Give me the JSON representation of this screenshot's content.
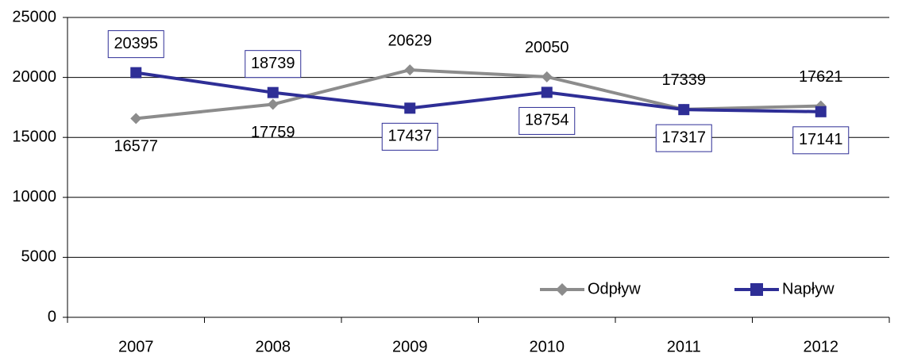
{
  "chart_data": {
    "type": "line",
    "categories": [
      "2007",
      "2008",
      "2009",
      "2010",
      "2011",
      "2012"
    ],
    "series": [
      {
        "name": "Odpływ",
        "color": "#8c8c8c",
        "marker": "diamond",
        "values": [
          16577,
          17759,
          20629,
          20050,
          17339,
          17621
        ]
      },
      {
        "name": "Napływ",
        "color": "#2e2e96",
        "marker": "square",
        "values": [
          20395,
          18739,
          17437,
          18754,
          17317,
          17141
        ]
      }
    ],
    "ylim": [
      0,
      25000
    ],
    "yticks": [
      0,
      5000,
      10000,
      15000,
      20000,
      25000
    ],
    "grid": true,
    "legend": "lower right"
  }
}
